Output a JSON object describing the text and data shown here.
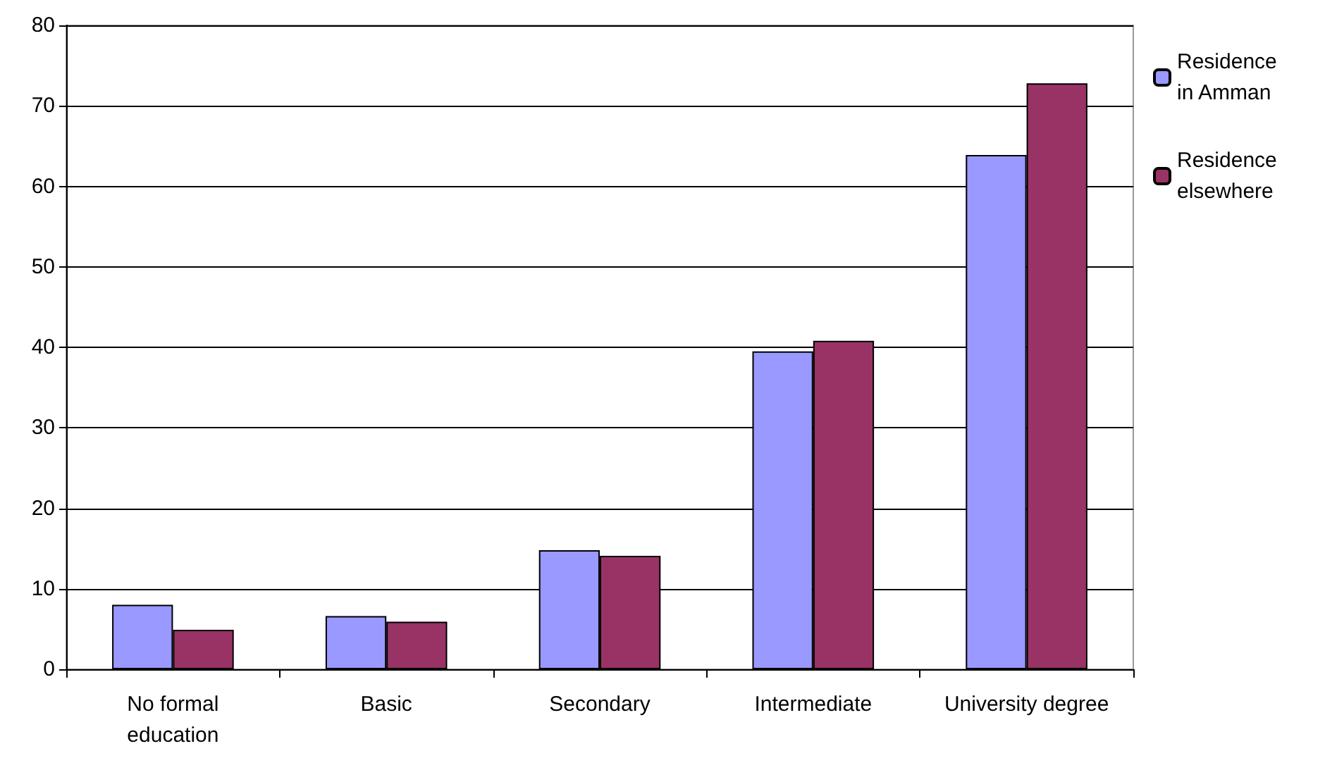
{
  "chart_data": {
    "type": "bar",
    "categories": [
      "No formal\neducation",
      "Basic",
      "Secondary",
      "Intermediate",
      "University degree"
    ],
    "series": [
      {
        "name": "Residence\nin Amman",
        "color": "#9999ff",
        "values": [
          8.0,
          6.6,
          14.8,
          39.5,
          63.9
        ]
      },
      {
        "name": "Residence\nelsewhere",
        "color": "#993366",
        "values": [
          4.9,
          5.9,
          14.1,
          40.8,
          72.8
        ]
      }
    ],
    "ylim": [
      0,
      80
    ],
    "yticks": [
      0,
      10,
      20,
      30,
      40,
      50,
      60,
      70,
      80
    ],
    "grid": "y",
    "legend": "right"
  }
}
